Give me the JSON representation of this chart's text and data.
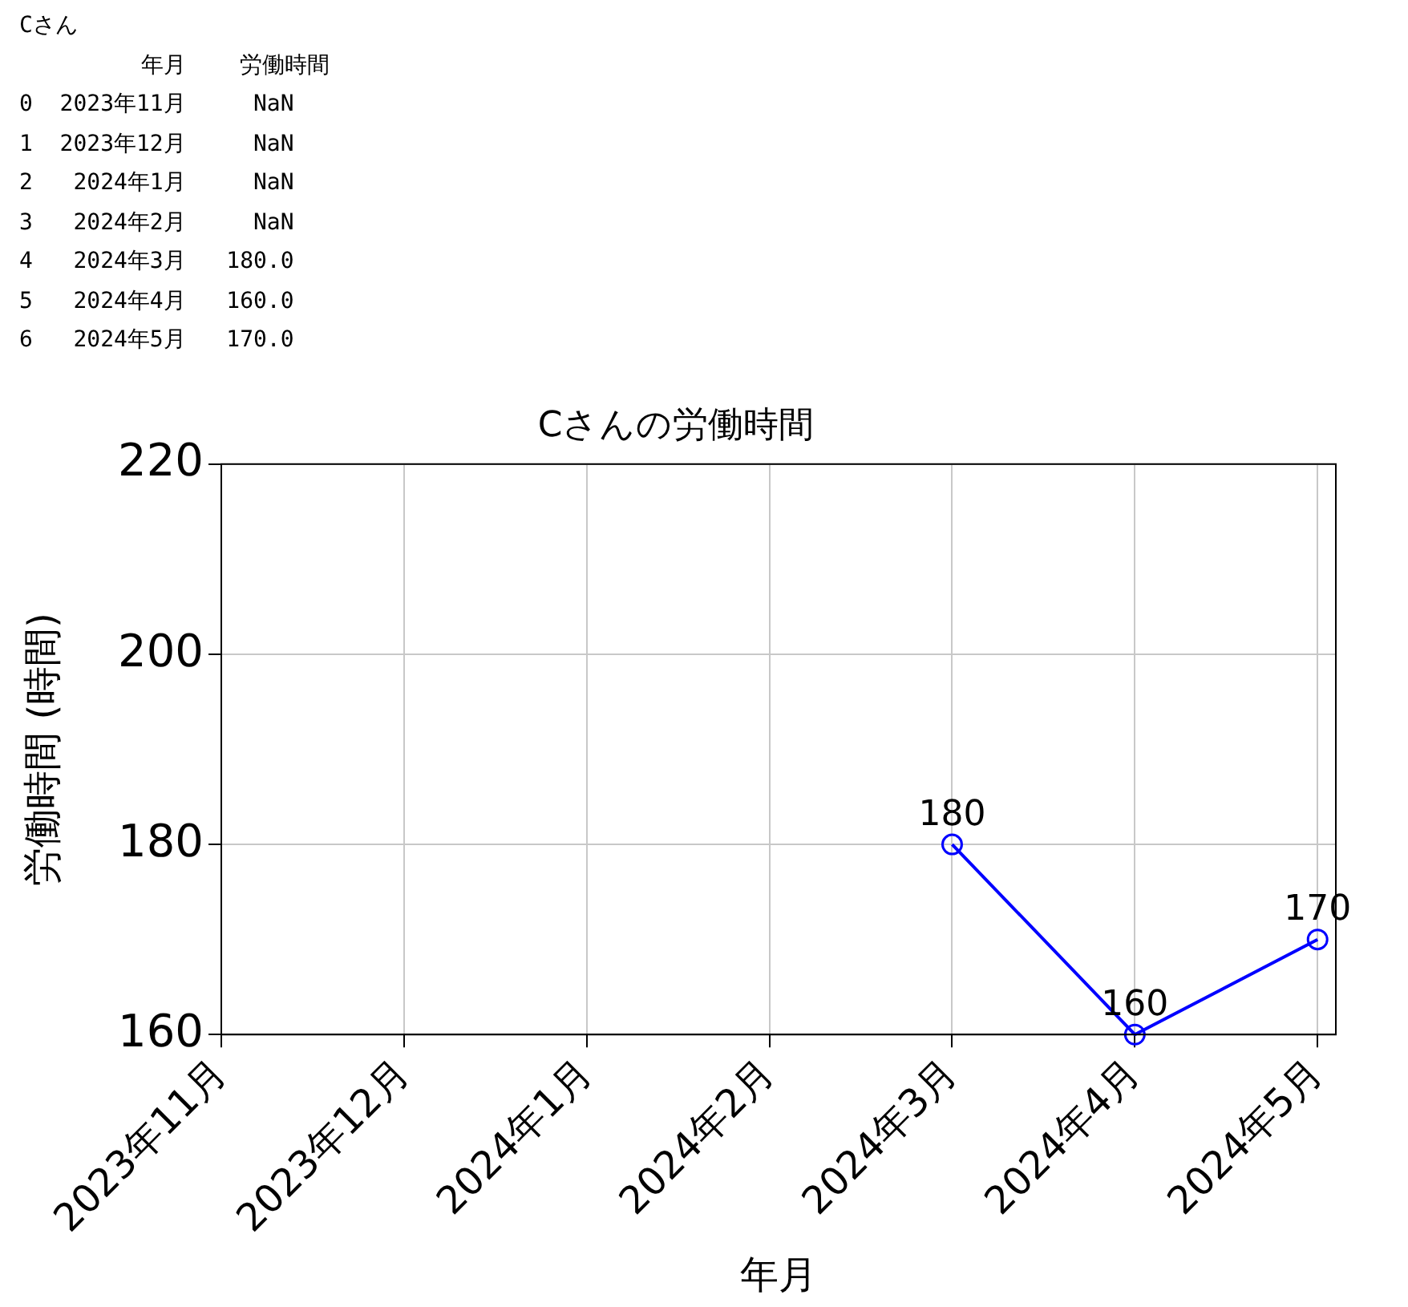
{
  "chart_data": {
    "type": "line",
    "title": "Cさんの労働時間",
    "xlabel": "年月",
    "ylabel": "労働時間 (時間)",
    "categories": [
      "2023年11月",
      "2023年12月",
      "2024年1月",
      "2024年2月",
      "2024年3月",
      "2024年4月",
      "2024年5月"
    ],
    "series": [
      {
        "color": "#0000ff",
        "values": [
          null,
          null,
          null,
          null,
          180,
          160,
          170
        ]
      }
    ],
    "ylim": [
      160,
      220
    ],
    "yticks": [
      160,
      180,
      200,
      220
    ],
    "grid": true,
    "legend": false,
    "marker": "circle",
    "line_style": "solid",
    "data_labels": true,
    "annotations": [
      "Cさん",
      "         年月    労働時間",
      "0  2023年11月     NaN",
      "1  2023年12月     NaN",
      "2   2024年1月     NaN",
      "3   2024年2月     NaN",
      "4   2024年3月   180.0",
      "5   2024年4月   160.0",
      "6   2024年5月   170.0"
    ]
  }
}
